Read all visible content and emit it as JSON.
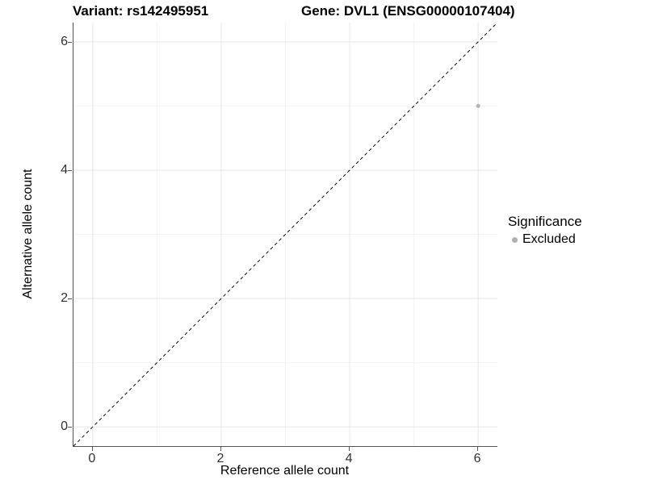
{
  "chart_data": {
    "type": "scatter",
    "title_left": "Variant: rs142495951",
    "title_right": "Gene: DVL1 (ENSG00000107404)",
    "xlabel": "Reference allele count",
    "ylabel": "Alternative allele count",
    "xlim": [
      -0.3,
      6.3
    ],
    "ylim": [
      -0.3,
      6.3
    ],
    "x_ticks": [
      0,
      2,
      4,
      6
    ],
    "y_ticks": [
      0,
      2,
      4,
      6
    ],
    "x_minor_ticks": [
      1,
      3,
      5
    ],
    "y_minor_ticks": [
      1,
      3,
      5
    ],
    "grid": true,
    "points": [
      {
        "x": 6,
        "y": 5,
        "series": "Excluded"
      }
    ],
    "reference_line": {
      "slope": 1,
      "intercept": 0,
      "style": "dashed",
      "color": "#000000"
    },
    "legend": {
      "title": "Significance",
      "position": "right",
      "entries": [
        {
          "label": "Excluded",
          "color": "#b0b0b0",
          "marker": "circle"
        }
      ]
    },
    "colors": {
      "point": "#b3b3b3",
      "major_grid": "#e6e6e6",
      "minor_grid": "#f2f2f2",
      "axis_line": "#555555",
      "tick_text": "#303030"
    }
  }
}
